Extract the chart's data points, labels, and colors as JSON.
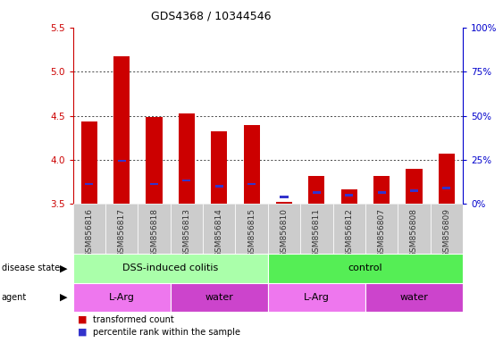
{
  "title": "GDS4368 / 10344546",
  "samples": [
    "GSM856816",
    "GSM856817",
    "GSM856818",
    "GSM856813",
    "GSM856814",
    "GSM856815",
    "GSM856810",
    "GSM856811",
    "GSM856812",
    "GSM856807",
    "GSM856808",
    "GSM856809"
  ],
  "transformed_count": [
    4.44,
    5.17,
    4.49,
    4.53,
    4.32,
    4.39,
    3.53,
    3.82,
    3.67,
    3.82,
    3.9,
    4.07
  ],
  "base_value": 3.5,
  "percentile_rank": [
    3.73,
    3.99,
    3.73,
    3.77,
    3.7,
    3.73,
    3.58,
    3.63,
    3.6,
    3.63,
    3.65,
    3.68
  ],
  "bar_color": "#cc0000",
  "percentile_color": "#3333cc",
  "ylim": [
    3.5,
    5.5
  ],
  "yticks": [
    3.5,
    4.0,
    4.5,
    5.0,
    5.5
  ],
  "y2lim": [
    0,
    100
  ],
  "y2ticks": [
    0,
    25,
    50,
    75,
    100
  ],
  "y2ticklabels": [
    "0%",
    "25%",
    "50%",
    "75%",
    "100%"
  ],
  "disease_state_groups": [
    {
      "label": "DSS-induced colitis",
      "start": 0,
      "end": 6,
      "color": "#aaffaa"
    },
    {
      "label": "control",
      "start": 6,
      "end": 12,
      "color": "#55ee55"
    }
  ],
  "agent_groups": [
    {
      "label": "L-Arg",
      "start": 0,
      "end": 3,
      "color": "#ee77ee"
    },
    {
      "label": "water",
      "start": 3,
      "end": 6,
      "color": "#cc44cc"
    },
    {
      "label": "L-Arg",
      "start": 6,
      "end": 9,
      "color": "#ee77ee"
    },
    {
      "label": "water",
      "start": 9,
      "end": 12,
      "color": "#cc44cc"
    }
  ],
  "xlabel_color": "#333333",
  "left_axis_color": "#cc0000",
  "right_axis_color": "#0000cc",
  "grid_color": "#000000",
  "bar_width": 0.5,
  "tick_label_bg": "#cccccc"
}
